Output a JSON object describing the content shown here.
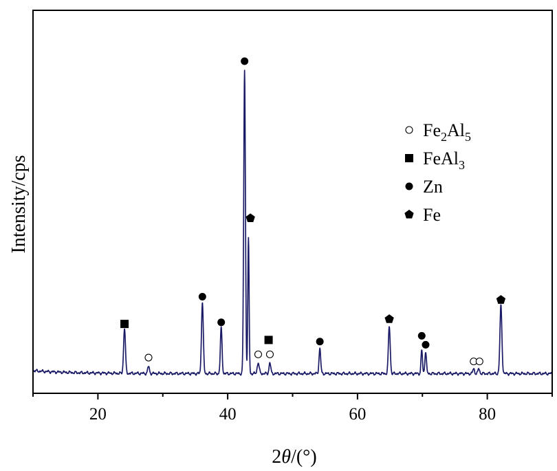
{
  "chart_data": {
    "type": "line",
    "title": "",
    "xlabel": {
      "prefix": "2",
      "variable": "θ",
      "suffix": "/(°)"
    },
    "ylabel": "Intensity/cps",
    "xlim": [
      10,
      90
    ],
    "ylim": [
      0,
      100
    ],
    "x_ticks": [
      20,
      40,
      60,
      80
    ],
    "x_tick_labels": [
      "20",
      "40",
      "60",
      "80"
    ],
    "grid": false,
    "legend_position": "top-right",
    "line_color": "#1a1a66",
    "baseline": 1.0,
    "peaks": [
      {
        "x": 24.1,
        "height": 14.2,
        "width": 0.14
      },
      {
        "x": 27.8,
        "height": 2.2,
        "width": 0.13
      },
      {
        "x": 36.1,
        "height": 22.3,
        "width": 0.14
      },
      {
        "x": 39.0,
        "height": 14.3,
        "width": 0.13
      },
      {
        "x": 42.6,
        "height": 94.5,
        "width": 0.13
      },
      {
        "x": 43.2,
        "height": 42.0,
        "width": 0.1
      },
      {
        "x": 44.7,
        "height": 3.4,
        "width": 0.15
      },
      {
        "x": 46.5,
        "height": 3.4,
        "width": 0.13
      },
      {
        "x": 54.2,
        "height": 7.8,
        "width": 0.13
      },
      {
        "x": 64.9,
        "height": 14.8,
        "width": 0.14
      },
      {
        "x": 69.9,
        "height": 7.4,
        "width": 0.11
      },
      {
        "x": 70.5,
        "height": 6.9,
        "width": 0.12
      },
      {
        "x": 77.9,
        "height": 1.6,
        "width": 0.12
      },
      {
        "x": 78.7,
        "height": 1.6,
        "width": 0.12
      },
      {
        "x": 82.1,
        "height": 21.2,
        "width": 0.15
      }
    ],
    "peak_markers": [
      {
        "x": 24.1,
        "y": 16.5,
        "phase": "FeAl3"
      },
      {
        "x": 27.8,
        "y": 6.0,
        "phase": "Fe2Al5"
      },
      {
        "x": 36.1,
        "y": 25.0,
        "phase": "Zn"
      },
      {
        "x": 39.0,
        "y": 17.0,
        "phase": "Zn"
      },
      {
        "x": 42.6,
        "y": 98.5,
        "phase": "Zn"
      },
      {
        "x": 43.5,
        "y": 49.5,
        "phase": "Fe"
      },
      {
        "x": 44.7,
        "y": 7.0,
        "phase": "Fe2Al5"
      },
      {
        "x": 46.3,
        "y": 11.5,
        "phase": "FeAl3"
      },
      {
        "x": 46.5,
        "y": 7.0,
        "phase": "Fe2Al5"
      },
      {
        "x": 54.2,
        "y": 11.0,
        "phase": "Zn"
      },
      {
        "x": 64.9,
        "y": 18.0,
        "phase": "Fe"
      },
      {
        "x": 69.9,
        "y": 12.8,
        "phase": "Zn"
      },
      {
        "x": 70.5,
        "y": 10.0,
        "phase": "Zn"
      },
      {
        "x": 77.9,
        "y": 4.8,
        "phase": "Fe2Al5"
      },
      {
        "x": 78.8,
        "y": 4.8,
        "phase": "Fe2Al5"
      },
      {
        "x": 82.1,
        "y": 24.0,
        "phase": "Fe"
      }
    ],
    "legend": [
      {
        "phase": "Fe2Al5",
        "marker": "open-circle",
        "parts": [
          [
            "Fe",
            ""
          ],
          [
            "2",
            "sub"
          ],
          [
            "Al",
            ""
          ],
          [
            "5",
            "sub"
          ]
        ]
      },
      {
        "phase": "FeAl3",
        "marker": "filled-square",
        "parts": [
          [
            "FeAl",
            ""
          ],
          [
            "3",
            "sub"
          ]
        ]
      },
      {
        "phase": "Zn",
        "marker": "filled-circle",
        "parts": [
          [
            "Zn",
            ""
          ]
        ]
      },
      {
        "phase": "Fe",
        "marker": "filled-pentagon",
        "parts": [
          [
            "Fe",
            ""
          ]
        ]
      }
    ]
  }
}
